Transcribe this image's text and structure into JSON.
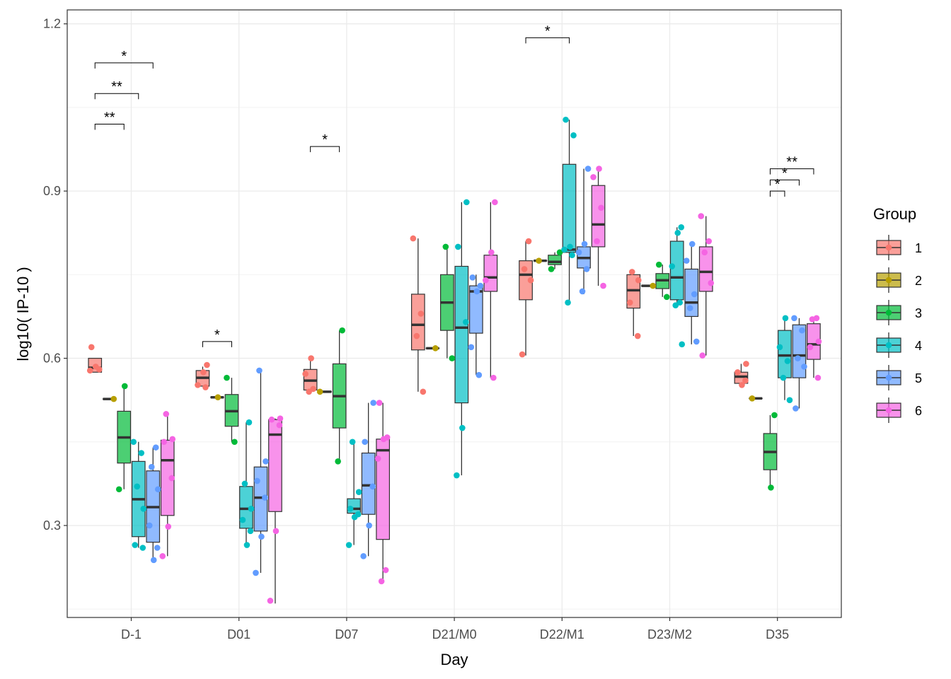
{
  "chart_data": {
    "type": "boxplot",
    "xlabel": "Day",
    "ylabel": "log10( IP-10 )",
    "ylim": [
      0.135,
      1.225
    ],
    "yticks": [
      0.3,
      0.6,
      0.9,
      1.2
    ],
    "ytick_labels": [
      "0.3",
      "0.6",
      "0.9",
      "1.2"
    ],
    "grid": true,
    "legend": {
      "title": "Group",
      "placement": "right"
    },
    "categories": [
      "D-1",
      "D01",
      "D07",
      "D21/M0",
      "D22/M1",
      "D23/M2",
      "D35"
    ],
    "series": [
      {
        "name": "1",
        "color": "#F8766D",
        "boxes": [
          {
            "q1": 0.575,
            "med": 0.583,
            "q3": 0.6,
            "lo": 0.575,
            "hi": 0.6
          },
          {
            "q1": 0.55,
            "med": 0.565,
            "q3": 0.578,
            "lo": 0.55,
            "hi": 0.585
          },
          {
            "q1": 0.543,
            "med": 0.56,
            "q3": 0.58,
            "lo": 0.543,
            "hi": 0.6
          },
          {
            "q1": 0.615,
            "med": 0.66,
            "q3": 0.715,
            "lo": 0.54,
            "hi": 0.815
          },
          {
            "q1": 0.705,
            "med": 0.75,
            "q3": 0.775,
            "lo": 0.605,
            "hi": 0.81
          },
          {
            "q1": 0.69,
            "med": 0.722,
            "q3": 0.75,
            "lo": 0.64,
            "hi": 0.755
          },
          {
            "q1": 0.555,
            "med": 0.567,
            "q3": 0.575,
            "lo": 0.555,
            "hi": 0.59
          }
        ],
        "points": [
          [
            0.62,
            0.58,
            0.585,
            0.578
          ],
          [
            0.588,
            0.575,
            0.552,
            0.548
          ],
          [
            0.6,
            0.572,
            0.545,
            0.54
          ],
          [
            0.815,
            0.68,
            0.64,
            0.54
          ],
          [
            0.81,
            0.76,
            0.74,
            0.607
          ],
          [
            0.755,
            0.74,
            0.7,
            0.64
          ],
          [
            0.59,
            0.575,
            0.56,
            0.552
          ]
        ]
      },
      {
        "name": "2",
        "color": "#B79F00",
        "boxes": [
          {
            "q1": 0.527,
            "med": 0.527,
            "q3": 0.527,
            "lo": 0.527,
            "hi": 0.527
          },
          {
            "q1": 0.53,
            "med": 0.53,
            "q3": 0.53,
            "lo": 0.53,
            "hi": 0.53
          },
          {
            "q1": 0.54,
            "med": 0.54,
            "q3": 0.54,
            "lo": 0.54,
            "hi": 0.54
          },
          {
            "q1": 0.618,
            "med": 0.618,
            "q3": 0.618,
            "lo": 0.618,
            "hi": 0.618
          },
          {
            "q1": 0.775,
            "med": 0.775,
            "q3": 0.775,
            "lo": 0.775,
            "hi": 0.775
          },
          {
            "q1": 0.73,
            "med": 0.73,
            "q3": 0.73,
            "lo": 0.73,
            "hi": 0.73
          },
          {
            "q1": 0.528,
            "med": 0.528,
            "q3": 0.528,
            "lo": 0.528,
            "hi": 0.528
          }
        ],
        "points": [
          [
            0.527
          ],
          [
            0.53
          ],
          [
            0.54
          ],
          [
            0.618
          ],
          [
            0.775
          ],
          [
            0.73
          ],
          [
            0.528
          ]
        ]
      },
      {
        "name": "3",
        "color": "#00BA38",
        "boxes": [
          {
            "q1": 0.412,
            "med": 0.458,
            "q3": 0.505,
            "lo": 0.365,
            "hi": 0.55
          },
          {
            "q1": 0.478,
            "med": 0.505,
            "q3": 0.535,
            "lo": 0.45,
            "hi": 0.565
          },
          {
            "q1": 0.475,
            "med": 0.532,
            "q3": 0.59,
            "lo": 0.415,
            "hi": 0.65
          },
          {
            "q1": 0.65,
            "med": 0.7,
            "q3": 0.75,
            "lo": 0.6,
            "hi": 0.8
          },
          {
            "q1": 0.768,
            "med": 0.773,
            "q3": 0.785,
            "lo": 0.76,
            "hi": 0.79
          },
          {
            "q1": 0.725,
            "med": 0.74,
            "q3": 0.752,
            "lo": 0.71,
            "hi": 0.768
          },
          {
            "q1": 0.4,
            "med": 0.432,
            "q3": 0.465,
            "lo": 0.368,
            "hi": 0.498
          }
        ],
        "points": [
          [
            0.55,
            0.365
          ],
          [
            0.565,
            0.45
          ],
          [
            0.65,
            0.415
          ],
          [
            0.8,
            0.6
          ],
          [
            0.79,
            0.76
          ],
          [
            0.768,
            0.71
          ],
          [
            0.498,
            0.368
          ]
        ]
      },
      {
        "name": "4",
        "color": "#00BFC4",
        "boxes": [
          {
            "q1": 0.28,
            "med": 0.347,
            "q3": 0.415,
            "lo": 0.26,
            "hi": 0.45
          },
          {
            "q1": 0.295,
            "med": 0.33,
            "q3": 0.37,
            "lo": 0.265,
            "hi": 0.485
          },
          {
            "q1": 0.322,
            "med": 0.33,
            "q3": 0.348,
            "lo": 0.265,
            "hi": 0.45
          },
          {
            "q1": 0.52,
            "med": 0.655,
            "q3": 0.765,
            "lo": 0.39,
            "hi": 0.88
          },
          {
            "q1": 0.79,
            "med": 0.795,
            "q3": 0.948,
            "lo": 0.7,
            "hi": 1.028
          },
          {
            "q1": 0.705,
            "med": 0.745,
            "q3": 0.81,
            "lo": 0.695,
            "hi": 0.835
          },
          {
            "q1": 0.565,
            "med": 0.605,
            "q3": 0.65,
            "lo": 0.525,
            "hi": 0.672
          }
        ],
        "points": [
          [
            0.45,
            0.43,
            0.37,
            0.33,
            0.265,
            0.26
          ],
          [
            0.485,
            0.375,
            0.33,
            0.31,
            0.29,
            0.265
          ],
          [
            0.45,
            0.36,
            0.33,
            0.32,
            0.315,
            0.265
          ],
          [
            0.88,
            0.8,
            0.665,
            0.475,
            0.39
          ],
          [
            1.028,
            1.0,
            0.8,
            0.795,
            0.785,
            0.7
          ],
          [
            0.835,
            0.825,
            0.765,
            0.7,
            0.695,
            0.625
          ],
          [
            0.672,
            0.62,
            0.595,
            0.565,
            0.525
          ]
        ]
      },
      {
        "name": "5",
        "color": "#619CFF",
        "boxes": [
          {
            "q1": 0.27,
            "med": 0.333,
            "q3": 0.398,
            "lo": 0.24,
            "hi": 0.44
          },
          {
            "q1": 0.29,
            "med": 0.35,
            "q3": 0.405,
            "lo": 0.215,
            "hi": 0.578
          },
          {
            "q1": 0.32,
            "med": 0.372,
            "q3": 0.43,
            "lo": 0.245,
            "hi": 0.52
          },
          {
            "q1": 0.645,
            "med": 0.72,
            "q3": 0.73,
            "lo": 0.57,
            "hi": 0.75
          },
          {
            "q1": 0.762,
            "med": 0.78,
            "q3": 0.8,
            "lo": 0.715,
            "hi": 0.94
          },
          {
            "q1": 0.675,
            "med": 0.7,
            "q3": 0.76,
            "lo": 0.625,
            "hi": 0.805
          },
          {
            "q1": 0.565,
            "med": 0.605,
            "q3": 0.66,
            "lo": 0.51,
            "hi": 0.672
          }
        ],
        "points": [
          [
            0.44,
            0.405,
            0.365,
            0.3,
            0.26,
            0.238
          ],
          [
            0.578,
            0.415,
            0.38,
            0.35,
            0.28,
            0.215
          ],
          [
            0.52,
            0.45,
            0.37,
            0.3,
            0.245
          ],
          [
            0.745,
            0.73,
            0.72,
            0.62,
            0.57
          ],
          [
            0.94,
            0.805,
            0.79,
            0.76,
            0.72
          ],
          [
            0.805,
            0.775,
            0.715,
            0.69,
            0.63
          ],
          [
            0.672,
            0.65,
            0.6,
            0.585,
            0.51
          ]
        ]
      },
      {
        "name": "6",
        "color": "#F564E3",
        "boxes": [
          {
            "q1": 0.318,
            "med": 0.417,
            "q3": 0.453,
            "lo": 0.245,
            "hi": 0.5
          },
          {
            "q1": 0.325,
            "med": 0.463,
            "q3": 0.49,
            "lo": 0.16,
            "hi": 0.492
          },
          {
            "q1": 0.275,
            "med": 0.435,
            "q3": 0.455,
            "lo": 0.2,
            "hi": 0.52
          },
          {
            "q1": 0.72,
            "med": 0.745,
            "q3": 0.785,
            "lo": 0.565,
            "hi": 0.88
          },
          {
            "q1": 0.8,
            "med": 0.84,
            "q3": 0.91,
            "lo": 0.73,
            "hi": 0.94
          },
          {
            "q1": 0.72,
            "med": 0.755,
            "q3": 0.8,
            "lo": 0.605,
            "hi": 0.855
          },
          {
            "q1": 0.598,
            "med": 0.625,
            "q3": 0.662,
            "lo": 0.565,
            "hi": 0.672
          }
        ],
        "points": [
          [
            0.5,
            0.455,
            0.45,
            0.385,
            0.298,
            0.245
          ],
          [
            0.492,
            0.49,
            0.48,
            0.29,
            0.165
          ],
          [
            0.52,
            0.458,
            0.455,
            0.42,
            0.22,
            0.2
          ],
          [
            0.88,
            0.79,
            0.74,
            0.565
          ],
          [
            0.94,
            0.925,
            0.87,
            0.81,
            0.73
          ],
          [
            0.855,
            0.81,
            0.79,
            0.735,
            0.605
          ],
          [
            0.672,
            0.67,
            0.63,
            0.62,
            0.565
          ]
        ]
      }
    ],
    "significance": [
      {
        "category": 0,
        "from_group": 1,
        "to_group": 5,
        "y": 1.13,
        "label": "*"
      },
      {
        "category": 0,
        "from_group": 1,
        "to_group": 4,
        "y": 1.075,
        "label": "**"
      },
      {
        "category": 0,
        "from_group": 1,
        "to_group": 3,
        "y": 1.02,
        "label": "**"
      },
      {
        "category": 1,
        "from_group": 1,
        "to_group": 3,
        "y": 0.63,
        "label": "*"
      },
      {
        "category": 2,
        "from_group": 1,
        "to_group": 3,
        "y": 0.98,
        "label": "*"
      },
      {
        "category": 4,
        "from_group": 1,
        "to_group": 4,
        "y": 1.175,
        "label": "*"
      },
      {
        "category": 6,
        "from_group": 3,
        "to_group": 6,
        "y": 0.94,
        "label": "**"
      },
      {
        "category": 6,
        "from_group": 3,
        "to_group": 5,
        "y": 0.92,
        "label": "*"
      },
      {
        "category": 6,
        "from_group": 3,
        "to_group": 4,
        "y": 0.9,
        "label": "*"
      }
    ]
  }
}
